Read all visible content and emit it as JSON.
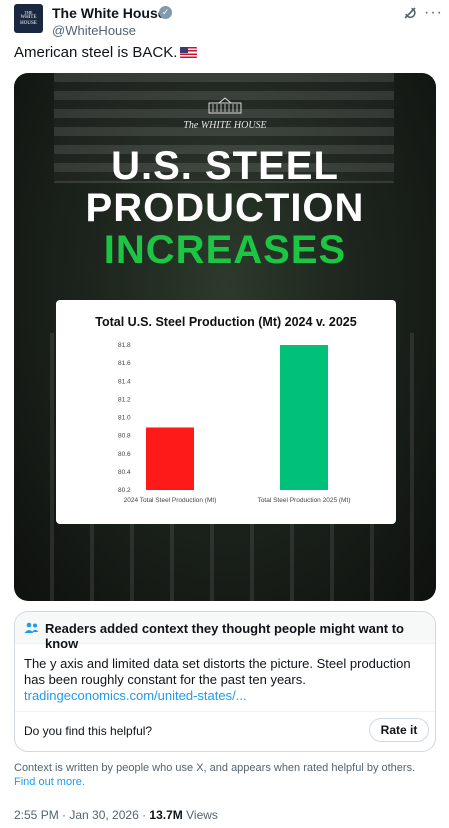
{
  "author": {
    "name": "The White House",
    "handle": "@WhiteHouse",
    "avatar_text_1": "THE",
    "avatar_text_2": "WHITE",
    "avatar_text_3": "HOUSE"
  },
  "tweet": {
    "text": "American steel is BACK.",
    "emoji": "us-flag"
  },
  "media": {
    "brand": "The WHITE HOUSE",
    "headline_1": "U.S. STEEL",
    "headline_2": "PRODUCTION",
    "headline_3": "INCREASES",
    "accent_color": "#1dc545"
  },
  "chart_data": {
    "type": "bar",
    "title": "Total U.S. Steel Production (Mt) 2024 v. 2025",
    "categories": [
      "2024 Total Steel Production (Mt)",
      "Total Steel Production 2025 (Mt)"
    ],
    "values": [
      80.89,
      81.8
    ],
    "colors": [
      "#ff1a1a",
      "#00c07a"
    ],
    "ylim": [
      80.2,
      81.8
    ],
    "yticks": [
      "81.8",
      "81.6",
      "81.4",
      "81.2",
      "81.0",
      "80.8",
      "80.6",
      "80.4",
      "80.2"
    ],
    "grid": false,
    "xlabel": "",
    "ylabel": ""
  },
  "community_note": {
    "header": "Readers added context they thought people might want to know",
    "body": "The y axis and limited data set distorts the picture. Steel production has been roughly constant for the past ten years.",
    "link": "tradingeconomics.com/united-states/...",
    "helpful_question": "Do you find this helpful?",
    "rate_label": "Rate it"
  },
  "footer": {
    "context_text": "Context is written by people who use X, and appears when rated helpful by others.",
    "find_out_more": "Find out more.",
    "timestamp": "2:55 PM · Jan 30, 2026 · ",
    "views_count": "13.7M",
    "views_label": " Views"
  },
  "icons": {
    "verified": "verified-badge-icon",
    "grok": "grok-icon",
    "more": "more-icon",
    "people": "people-icon"
  }
}
